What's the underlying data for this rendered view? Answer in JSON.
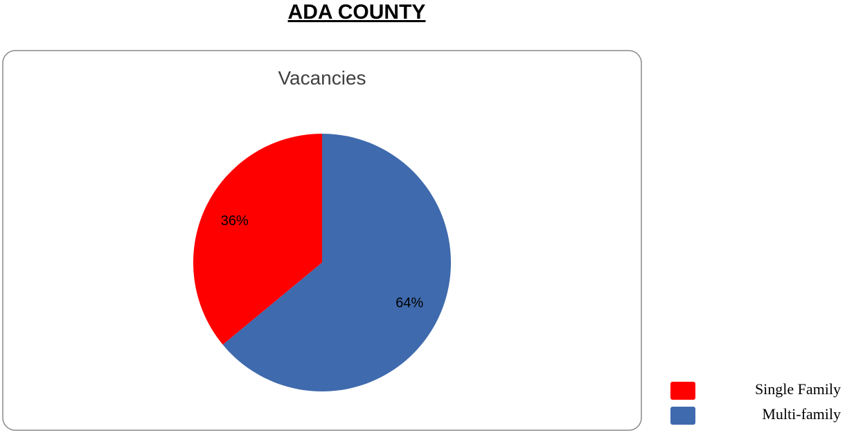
{
  "page_title": "ADA COUNTY",
  "chart_data": {
    "type": "pie",
    "title": "Vacancies",
    "categories": [
      "Single Family",
      "Multi-family"
    ],
    "values": [
      36,
      64
    ],
    "value_labels": [
      "36%",
      "64%"
    ],
    "colors": [
      "#ff0000",
      "#3f6aad"
    ],
    "legend": "bottom-right"
  }
}
